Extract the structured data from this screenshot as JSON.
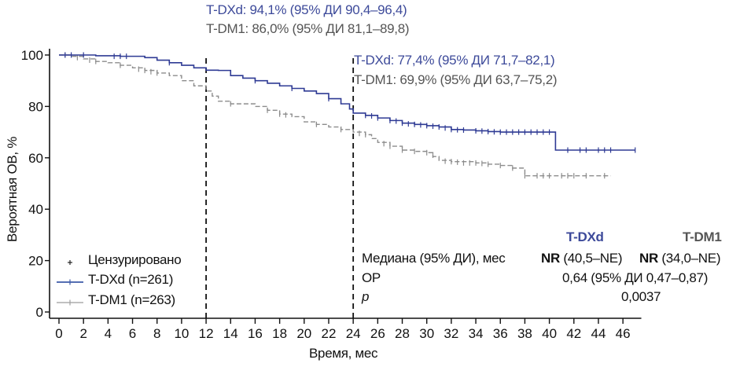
{
  "chart_data": {
    "type": "line",
    "subtype": "kaplan-meier",
    "xlabel": "Время, мес",
    "ylabel": "Вероятная ОВ, %",
    "xlim": [
      0,
      47
    ],
    "ylim": [
      0,
      100
    ],
    "xticks": [
      0,
      2,
      4,
      6,
      8,
      10,
      12,
      14,
      16,
      18,
      20,
      22,
      24,
      26,
      28,
      30,
      32,
      34,
      36,
      38,
      40,
      42,
      44,
      46
    ],
    "yticks": [
      0,
      20,
      40,
      60,
      80,
      100
    ],
    "grid": false,
    "reference_lines_x": [
      12,
      24
    ],
    "legend": {
      "placement": "bottom-left",
      "entries": [
        {
          "label": "Цензурировано",
          "marker": "+",
          "color": "#111111"
        },
        {
          "label": "T-DXd (n=261)",
          "color": "#3d4a9a"
        },
        {
          "label": "T-DM1 (n=263)",
          "color": "#a6a6a6"
        }
      ]
    },
    "series": [
      {
        "name": "T-DXd",
        "color": "#2e3a94",
        "style": "solid",
        "points": [
          [
            0,
            100
          ],
          [
            1.5,
            100
          ],
          [
            3,
            99.7
          ],
          [
            5,
            99.5
          ],
          [
            7,
            99
          ],
          [
            8,
            98
          ],
          [
            9,
            97
          ],
          [
            10,
            96
          ],
          [
            11,
            95
          ],
          [
            12,
            94.1
          ],
          [
            13,
            94
          ],
          [
            14,
            92
          ],
          [
            15,
            91
          ],
          [
            16,
            90
          ],
          [
            17,
            89
          ],
          [
            18,
            88
          ],
          [
            19,
            87
          ],
          [
            20,
            86
          ],
          [
            21,
            85
          ],
          [
            22,
            83
          ],
          [
            23,
            81
          ],
          [
            23.7,
            79
          ],
          [
            24,
            77.4
          ],
          [
            25,
            76.5
          ],
          [
            26,
            75.5
          ],
          [
            27,
            74.5
          ],
          [
            28,
            73.5
          ],
          [
            29,
            73
          ],
          [
            30,
            72.5
          ],
          [
            31,
            72
          ],
          [
            32,
            71
          ],
          [
            33,
            70.8
          ],
          [
            34,
            70.5
          ],
          [
            35,
            70.2
          ],
          [
            36,
            70
          ],
          [
            40.5,
            70
          ],
          [
            40.5,
            63
          ],
          [
            47,
            63
          ]
        ],
        "censors": [
          [
            0.5,
            100
          ],
          [
            1,
            100
          ],
          [
            2,
            100
          ],
          [
            4.5,
            99.5
          ],
          [
            5,
            99.5
          ],
          [
            5.5,
            99.5
          ],
          [
            9,
            97
          ],
          [
            16,
            90
          ],
          [
            19,
            87
          ],
          [
            22,
            83
          ],
          [
            25,
            76.5
          ],
          [
            25.5,
            76.3
          ],
          [
            26,
            75.5
          ],
          [
            27,
            74.5
          ],
          [
            27.5,
            74.3
          ],
          [
            28,
            73.5
          ],
          [
            28.5,
            73.2
          ],
          [
            29,
            73
          ],
          [
            29.5,
            72.8
          ],
          [
            30,
            72.5
          ],
          [
            30.5,
            72.3
          ],
          [
            31,
            72
          ],
          [
            31.5,
            71.6
          ],
          [
            32,
            71
          ],
          [
            32.5,
            70.9
          ],
          [
            33,
            70.8
          ],
          [
            34,
            70.5
          ],
          [
            34.5,
            70.4
          ],
          [
            35,
            70.2
          ],
          [
            35.5,
            70.1
          ],
          [
            36,
            70
          ],
          [
            36.5,
            70
          ],
          [
            37,
            70
          ],
          [
            37.5,
            70
          ],
          [
            38,
            70
          ],
          [
            38.5,
            70
          ],
          [
            39,
            70
          ],
          [
            39.5,
            70
          ],
          [
            40,
            70
          ],
          [
            41.5,
            63
          ],
          [
            42.5,
            63
          ],
          [
            43,
            63
          ],
          [
            44,
            63
          ],
          [
            44.5,
            63
          ],
          [
            45,
            63
          ],
          [
            47,
            63
          ]
        ]
      },
      {
        "name": "T-DM1",
        "color": "#8c8c8c",
        "style": "dashed",
        "points": [
          [
            0,
            100
          ],
          [
            1,
            99.5
          ],
          [
            2,
            98.5
          ],
          [
            3,
            97.5
          ],
          [
            4,
            97
          ],
          [
            5,
            96
          ],
          [
            6,
            95
          ],
          [
            7,
            94
          ],
          [
            8,
            93
          ],
          [
            9,
            92
          ],
          [
            10,
            90
          ],
          [
            11,
            88
          ],
          [
            12,
            86
          ],
          [
            12.5,
            84
          ],
          [
            13,
            82
          ],
          [
            14,
            81
          ],
          [
            16,
            80
          ],
          [
            17,
            78.5
          ],
          [
            18,
            77
          ],
          [
            19,
            76
          ],
          [
            20,
            74
          ],
          [
            21,
            73
          ],
          [
            22,
            72
          ],
          [
            23,
            71
          ],
          [
            24,
            70
          ],
          [
            25,
            69
          ],
          [
            25.5,
            67.5
          ],
          [
            26,
            66
          ],
          [
            27,
            64.5
          ],
          [
            28,
            63
          ],
          [
            29,
            62.5
          ],
          [
            30,
            62
          ],
          [
            30.5,
            60.5
          ],
          [
            31,
            59
          ],
          [
            32,
            58.5
          ],
          [
            34,
            58
          ],
          [
            35,
            57.5
          ],
          [
            36,
            57
          ],
          [
            37,
            56
          ],
          [
            38,
            53
          ],
          [
            45,
            53
          ]
        ],
        "censors": [
          [
            0.5,
            100
          ],
          [
            1.5,
            99
          ],
          [
            2.5,
            98
          ],
          [
            3,
            97.5
          ],
          [
            5,
            96
          ],
          [
            6.5,
            94.5
          ],
          [
            7,
            94
          ],
          [
            7.5,
            93.5
          ],
          [
            8,
            93
          ],
          [
            14,
            81
          ],
          [
            17,
            78.5
          ],
          [
            18,
            77
          ],
          [
            18.5,
            76.7
          ],
          [
            21,
            73
          ],
          [
            23,
            71
          ],
          [
            24.5,
            69.5
          ],
          [
            25,
            69
          ],
          [
            26.5,
            65.5
          ],
          [
            27,
            64.5
          ],
          [
            28,
            63
          ],
          [
            29,
            62.5
          ],
          [
            30,
            62
          ],
          [
            30.5,
            61
          ],
          [
            31.5,
            58.7
          ],
          [
            32,
            58.5
          ],
          [
            32.5,
            58.3
          ],
          [
            33,
            58
          ],
          [
            33.5,
            58
          ],
          [
            34,
            58
          ],
          [
            34.5,
            57.8
          ],
          [
            35,
            57.5
          ],
          [
            36,
            57
          ],
          [
            37,
            56
          ],
          [
            38,
            53
          ],
          [
            39,
            53
          ],
          [
            39.5,
            53
          ],
          [
            40,
            53
          ],
          [
            41,
            53
          ],
          [
            41.5,
            53
          ],
          [
            42,
            53
          ],
          [
            43,
            53
          ],
          [
            44.5,
            53
          ]
        ]
      }
    ],
    "annotations": {
      "at12": {
        "t_dxd": "T-DXd: 94,1% (95% ДИ 90,4–96,4)",
        "t_dm1": "T-DM1: 86,0% (95% ДИ 81,1–89,8)"
      },
      "at24": {
        "t_dxd": "T-DXd: 77,4% (95% ДИ 71,7–82,1)",
        "t_dm1": "T-DM1: 69,9% (95% ДИ 63,7–75,2)"
      }
    },
    "stats_table": {
      "col_headers": [
        "T-DXd",
        "T-DM1"
      ],
      "median_label": "Медиана (95% ДИ), мес",
      "median_dxd_bold": "NR",
      "median_dxd_ci": "(40,5–NE)",
      "median_dm1_bold": "NR",
      "median_dm1_ci": "(34,0–NE)",
      "hr_label": "ОР",
      "hr_value": "0,64 (95% ДИ 0,47–0,87)",
      "p_label": "p",
      "p_value": "0,0037"
    }
  }
}
